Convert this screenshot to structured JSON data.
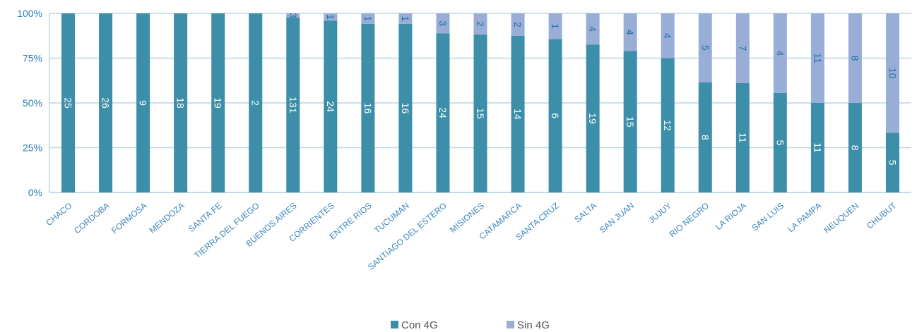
{
  "chart_data": {
    "type": "bar",
    "stacked": "percent",
    "categories": [
      "CHACO",
      "CORDOBA",
      "FORMOSA",
      "MENDOZA",
      "SANTA FE",
      "TIERRA DEL FUEGO",
      "BUENOS AIRES",
      "CORRIENTES",
      "ENTRE RIOS",
      "TUCUMAN",
      "SANTIAGO DEL ESTERO",
      "MISIONES",
      "CATAMARCA",
      "SANTA CRUZ",
      "SALTA",
      "SAN JUAN",
      "JUJUY",
      "RIO NEGRO",
      "LA RIOJA",
      "SAN LUIS",
      "LA PAMPA",
      "NEUQUEN",
      "CHUBUT"
    ],
    "series": [
      {
        "name": "Con 4G",
        "color": "#3d8ea8",
        "values": [
          25,
          26,
          9,
          18,
          19,
          2,
          131,
          24,
          16,
          16,
          24,
          15,
          14,
          6,
          19,
          15,
          12,
          8,
          11,
          5,
          11,
          8,
          5
        ]
      },
      {
        "name": "Sin 4G",
        "color": "#98aed6",
        "values": [
          0,
          0,
          0,
          0,
          0,
          0,
          3,
          1,
          1,
          1,
          3,
          2,
          2,
          1,
          4,
          4,
          4,
          5,
          7,
          4,
          11,
          8,
          10
        ]
      }
    ],
    "yticks": [
      "0%",
      "25%",
      "50%",
      "75%",
      "100%"
    ],
    "ylim": [
      0,
      100
    ],
    "grid": true,
    "legend_position": "bottom",
    "data_labels": true
  }
}
